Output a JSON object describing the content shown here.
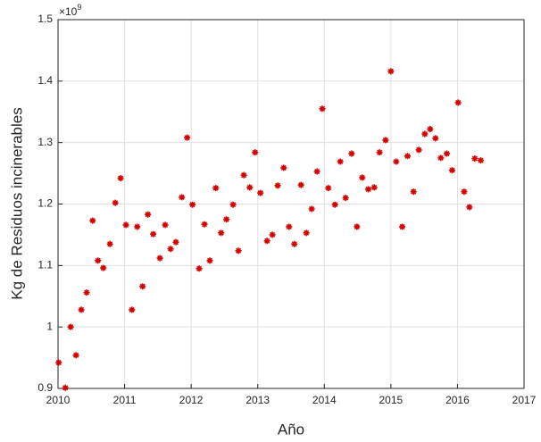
{
  "chart_data": {
    "type": "scatter",
    "xlabel": "Año",
    "ylabel": "Kg de Residuos incinerables",
    "y_exponent_base": "×10",
    "y_exponent_power": "9",
    "xlim": [
      2010,
      2017
    ],
    "xticks": [
      2010,
      2011,
      2012,
      2013,
      2014,
      2015,
      2016,
      2017
    ],
    "ylim": [
      0.9,
      1.5
    ],
    "yticks": [
      0.9,
      1,
      1.1,
      1.2,
      1.3,
      1.4,
      1.5
    ],
    "grid": true,
    "color": "#d40000",
    "x": [
      2010.01,
      2010.11,
      2010.19,
      2010.27,
      2010.35,
      2010.43,
      2010.52,
      2010.6,
      2010.68,
      2010.78,
      2010.86,
      2010.94,
      2011.02,
      2011.11,
      2011.19,
      2011.27,
      2011.35,
      2011.43,
      2011.53,
      2011.61,
      2011.69,
      2011.77,
      2011.86,
      2011.94,
      2012.02,
      2012.12,
      2012.2,
      2012.28,
      2012.37,
      2012.45,
      2012.53,
      2012.63,
      2012.71,
      2012.79,
      2012.88,
      2012.96,
      2013.04,
      2013.14,
      2013.22,
      2013.3,
      2013.39,
      2013.47,
      2013.55,
      2013.65,
      2013.73,
      2013.81,
      2013.89,
      2013.97,
      2014.06,
      2014.16,
      2014.24,
      2014.32,
      2014.41,
      2014.49,
      2014.57,
      2014.66,
      2014.75,
      2014.83,
      2014.92,
      2015.0,
      2015.08,
      2015.17,
      2015.25,
      2015.34,
      2015.42,
      2015.51,
      2015.59,
      2015.67,
      2015.75,
      2015.84,
      2015.92,
      2016.01,
      2016.1,
      2016.18,
      2016.26,
      2016.35
    ],
    "values": [
      0.942,
      0.901,
      1.0,
      0.954,
      1.028,
      1.056,
      1.173,
      1.108,
      1.096,
      1.135,
      1.202,
      1.242,
      1.166,
      1.028,
      1.163,
      1.066,
      1.183,
      1.151,
      1.112,
      1.166,
      1.127,
      1.138,
      1.211,
      1.308,
      1.199,
      1.095,
      1.167,
      1.108,
      1.226,
      1.153,
      1.175,
      1.199,
      1.124,
      1.247,
      1.227,
      1.284,
      1.218,
      1.14,
      1.15,
      1.23,
      1.259,
      1.163,
      1.135,
      1.231,
      1.153,
      1.192,
      1.253,
      1.355,
      1.226,
      1.199,
      1.269,
      1.21,
      1.282,
      1.163,
      1.243,
      1.224,
      1.227,
      1.284,
      1.304,
      1.416,
      1.269,
      1.163,
      1.278,
      1.22,
      1.288,
      1.314,
      1.322,
      1.307,
      1.275,
      1.282,
      1.255,
      1.365,
      1.22,
      1.195,
      1.274,
      1.271
    ]
  }
}
